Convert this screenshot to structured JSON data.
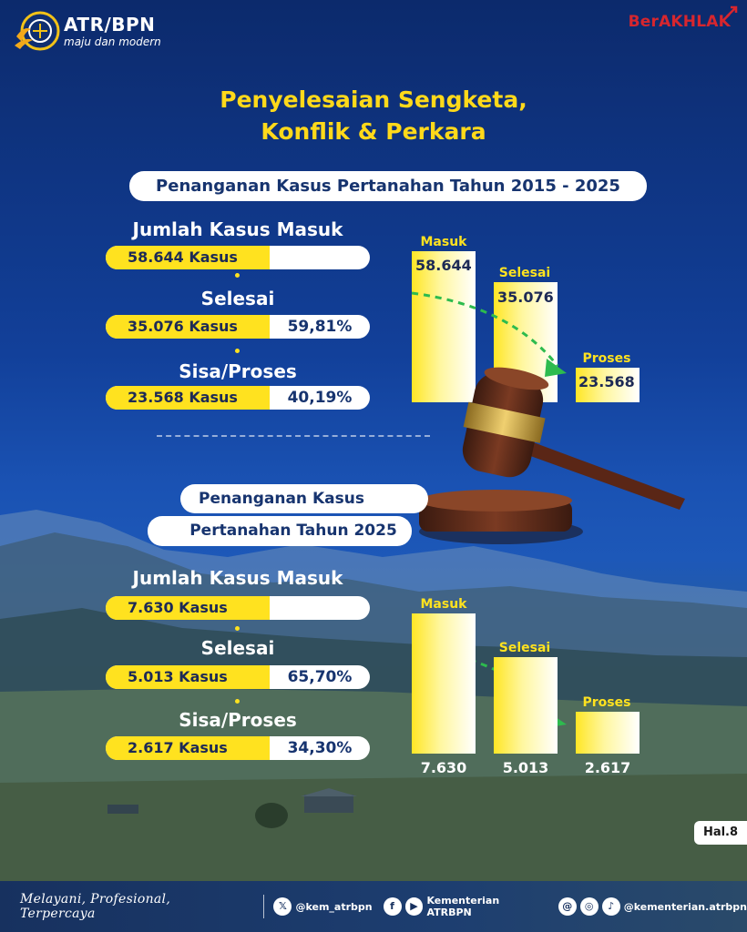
{
  "header": {
    "logo_title": "ATR/BPN",
    "logo_subtitle": "maju dan modern",
    "brand_tag": "BerAKHLAK"
  },
  "title_line1": "Penyelesaian Sengketa,",
  "title_line2": "Konflik & Perkara",
  "section1": {
    "heading": "Penanganan Kasus Pertanahan Tahun 2015 - 2025",
    "masuk_label": "Jumlah Kasus Masuk",
    "masuk_value": "58.644 Kasus",
    "selesai_label": "Selesai",
    "selesai_value": "35.076 Kasus",
    "selesai_pct": "59,81%",
    "sisa_label": "Sisa/Proses",
    "sisa_value": "23.568 Kasus",
    "sisa_pct": "40,19%"
  },
  "section2": {
    "heading_line1": "Penanganan Kasus",
    "heading_line2": "Pertanahan Tahun 2025",
    "masuk_label": "Jumlah Kasus Masuk",
    "masuk_value": "7.630 Kasus",
    "selesai_label": "Selesai",
    "selesai_value": "5.013 Kasus",
    "selesai_pct": "65,70%",
    "sisa_label": "Sisa/Proses",
    "sisa_value": "2.617 Kasus",
    "sisa_pct": "34,30%"
  },
  "chart1": {
    "labels": [
      "Masuk",
      "Selesai",
      "Proses"
    ],
    "values": [
      58644,
      35076,
      23568
    ],
    "value_labels": [
      "58.644",
      "35.076",
      "23.568"
    ]
  },
  "chart2": {
    "labels": [
      "Masuk",
      "Selesai",
      "Proses"
    ],
    "values": [
      7630,
      5013,
      2617
    ],
    "value_labels": [
      "7.630",
      "5.013",
      "2.617"
    ]
  },
  "page_label": "Hal.8",
  "footer": {
    "slogan": "Melayani, Profesional, Terpercaya",
    "x_handle": "@kem_atrbpn",
    "fb_yt_handle": "Kementerian ATRBPN",
    "ig_tt_handle": "@kementerian.atrbpn"
  },
  "colors": {
    "accent_yellow": "#ffe21f",
    "navy": "#17346f",
    "brand_red": "#d7262e"
  }
}
